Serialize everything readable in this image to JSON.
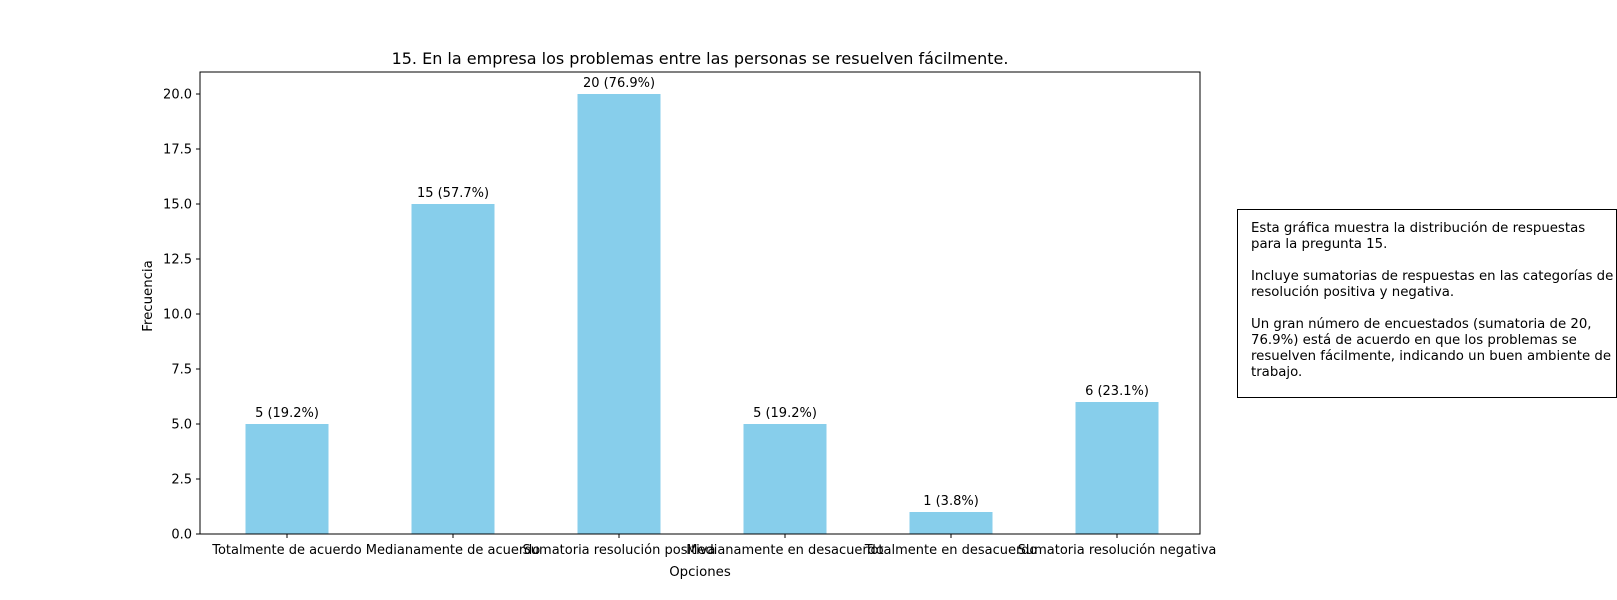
{
  "chart_data": {
    "type": "bar",
    "title": "15. En la empresa los problemas entre las personas se resuelven fácilmente.",
    "xlabel": "Opciones",
    "ylabel": "Frecuencia",
    "categories": [
      "Totalmente de acuerdo",
      "Medianamente de acuerdo",
      "Sumatoria resolución positiva",
      "Medianamente en desacuerdo",
      "Totalmente en desacuerdo",
      "Sumatoria resolución negativa"
    ],
    "values": [
      5,
      15,
      20,
      5,
      1,
      6
    ],
    "data_labels": [
      "5 (19.2%)",
      "15 (57.7%)",
      "20 (76.9%)",
      "5 (19.2%)",
      "1 (3.8%)",
      "6 (23.1%)"
    ],
    "ylim": [
      0,
      21
    ],
    "yticks": [
      "0.0",
      "2.5",
      "5.0",
      "7.5",
      "10.0",
      "12.5",
      "15.0",
      "17.5",
      "20.0"
    ],
    "bar_color": "#87CEEB",
    "grid": false
  },
  "note": {
    "paragraphs": [
      "Esta gráfica muestra la distribución de respuestas para la pregunta 15.",
      "Incluye sumatorias de respuestas en las categorías de resolución positiva y negativa.",
      "Un gran número de encuestados (sumatoria de 20, 76.9%) está de acuerdo en que los problemas se resuelven fácilmente, indicando un buen ambiente de trabajo."
    ]
  }
}
